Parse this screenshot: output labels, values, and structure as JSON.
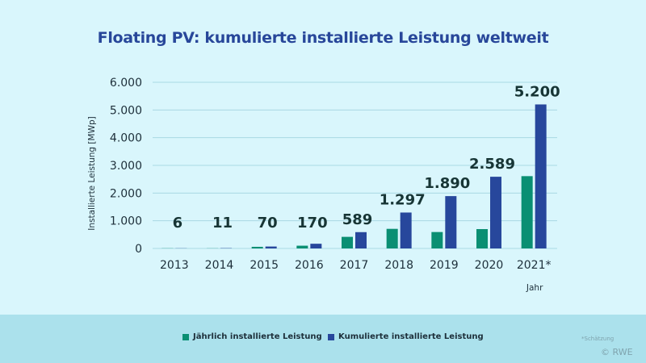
{
  "chart_data": {
    "type": "bar",
    "title": "Floating PV: kumulierte installierte Leistung weltweit",
    "xlabel": "Jahr",
    "ylabel": "Installierte Leistung [MWp]",
    "ylim": [
      0,
      6000
    ],
    "yticks": [
      "0",
      "1.000",
      "2.000",
      "3.000",
      "4.000",
      "5.000",
      "6.000"
    ],
    "grid": true,
    "legend_position": "bottom",
    "categories": [
      "2013",
      "2014",
      "2015",
      "2016",
      "2017",
      "2018",
      "2019",
      "2020",
      "2021*"
    ],
    "series": [
      {
        "name": "Jährlich installierte Leistung",
        "color": "#0a8f73",
        "values": [
          6,
          5,
          59,
          100,
          419,
          708,
          593,
          699,
          2611
        ]
      },
      {
        "name": "Kumulierte installierte Leistung",
        "color": "#27479c",
        "values": [
          6,
          11,
          70,
          170,
          589,
          1297,
          1890,
          2589,
          5200
        ]
      }
    ],
    "data_labels": [
      "6",
      "11",
      "70",
      "170",
      "589",
      "1.297",
      "1.890",
      "2.589",
      "5.200"
    ]
  },
  "footnote": "*Schätzung",
  "copyright": "© RWE"
}
